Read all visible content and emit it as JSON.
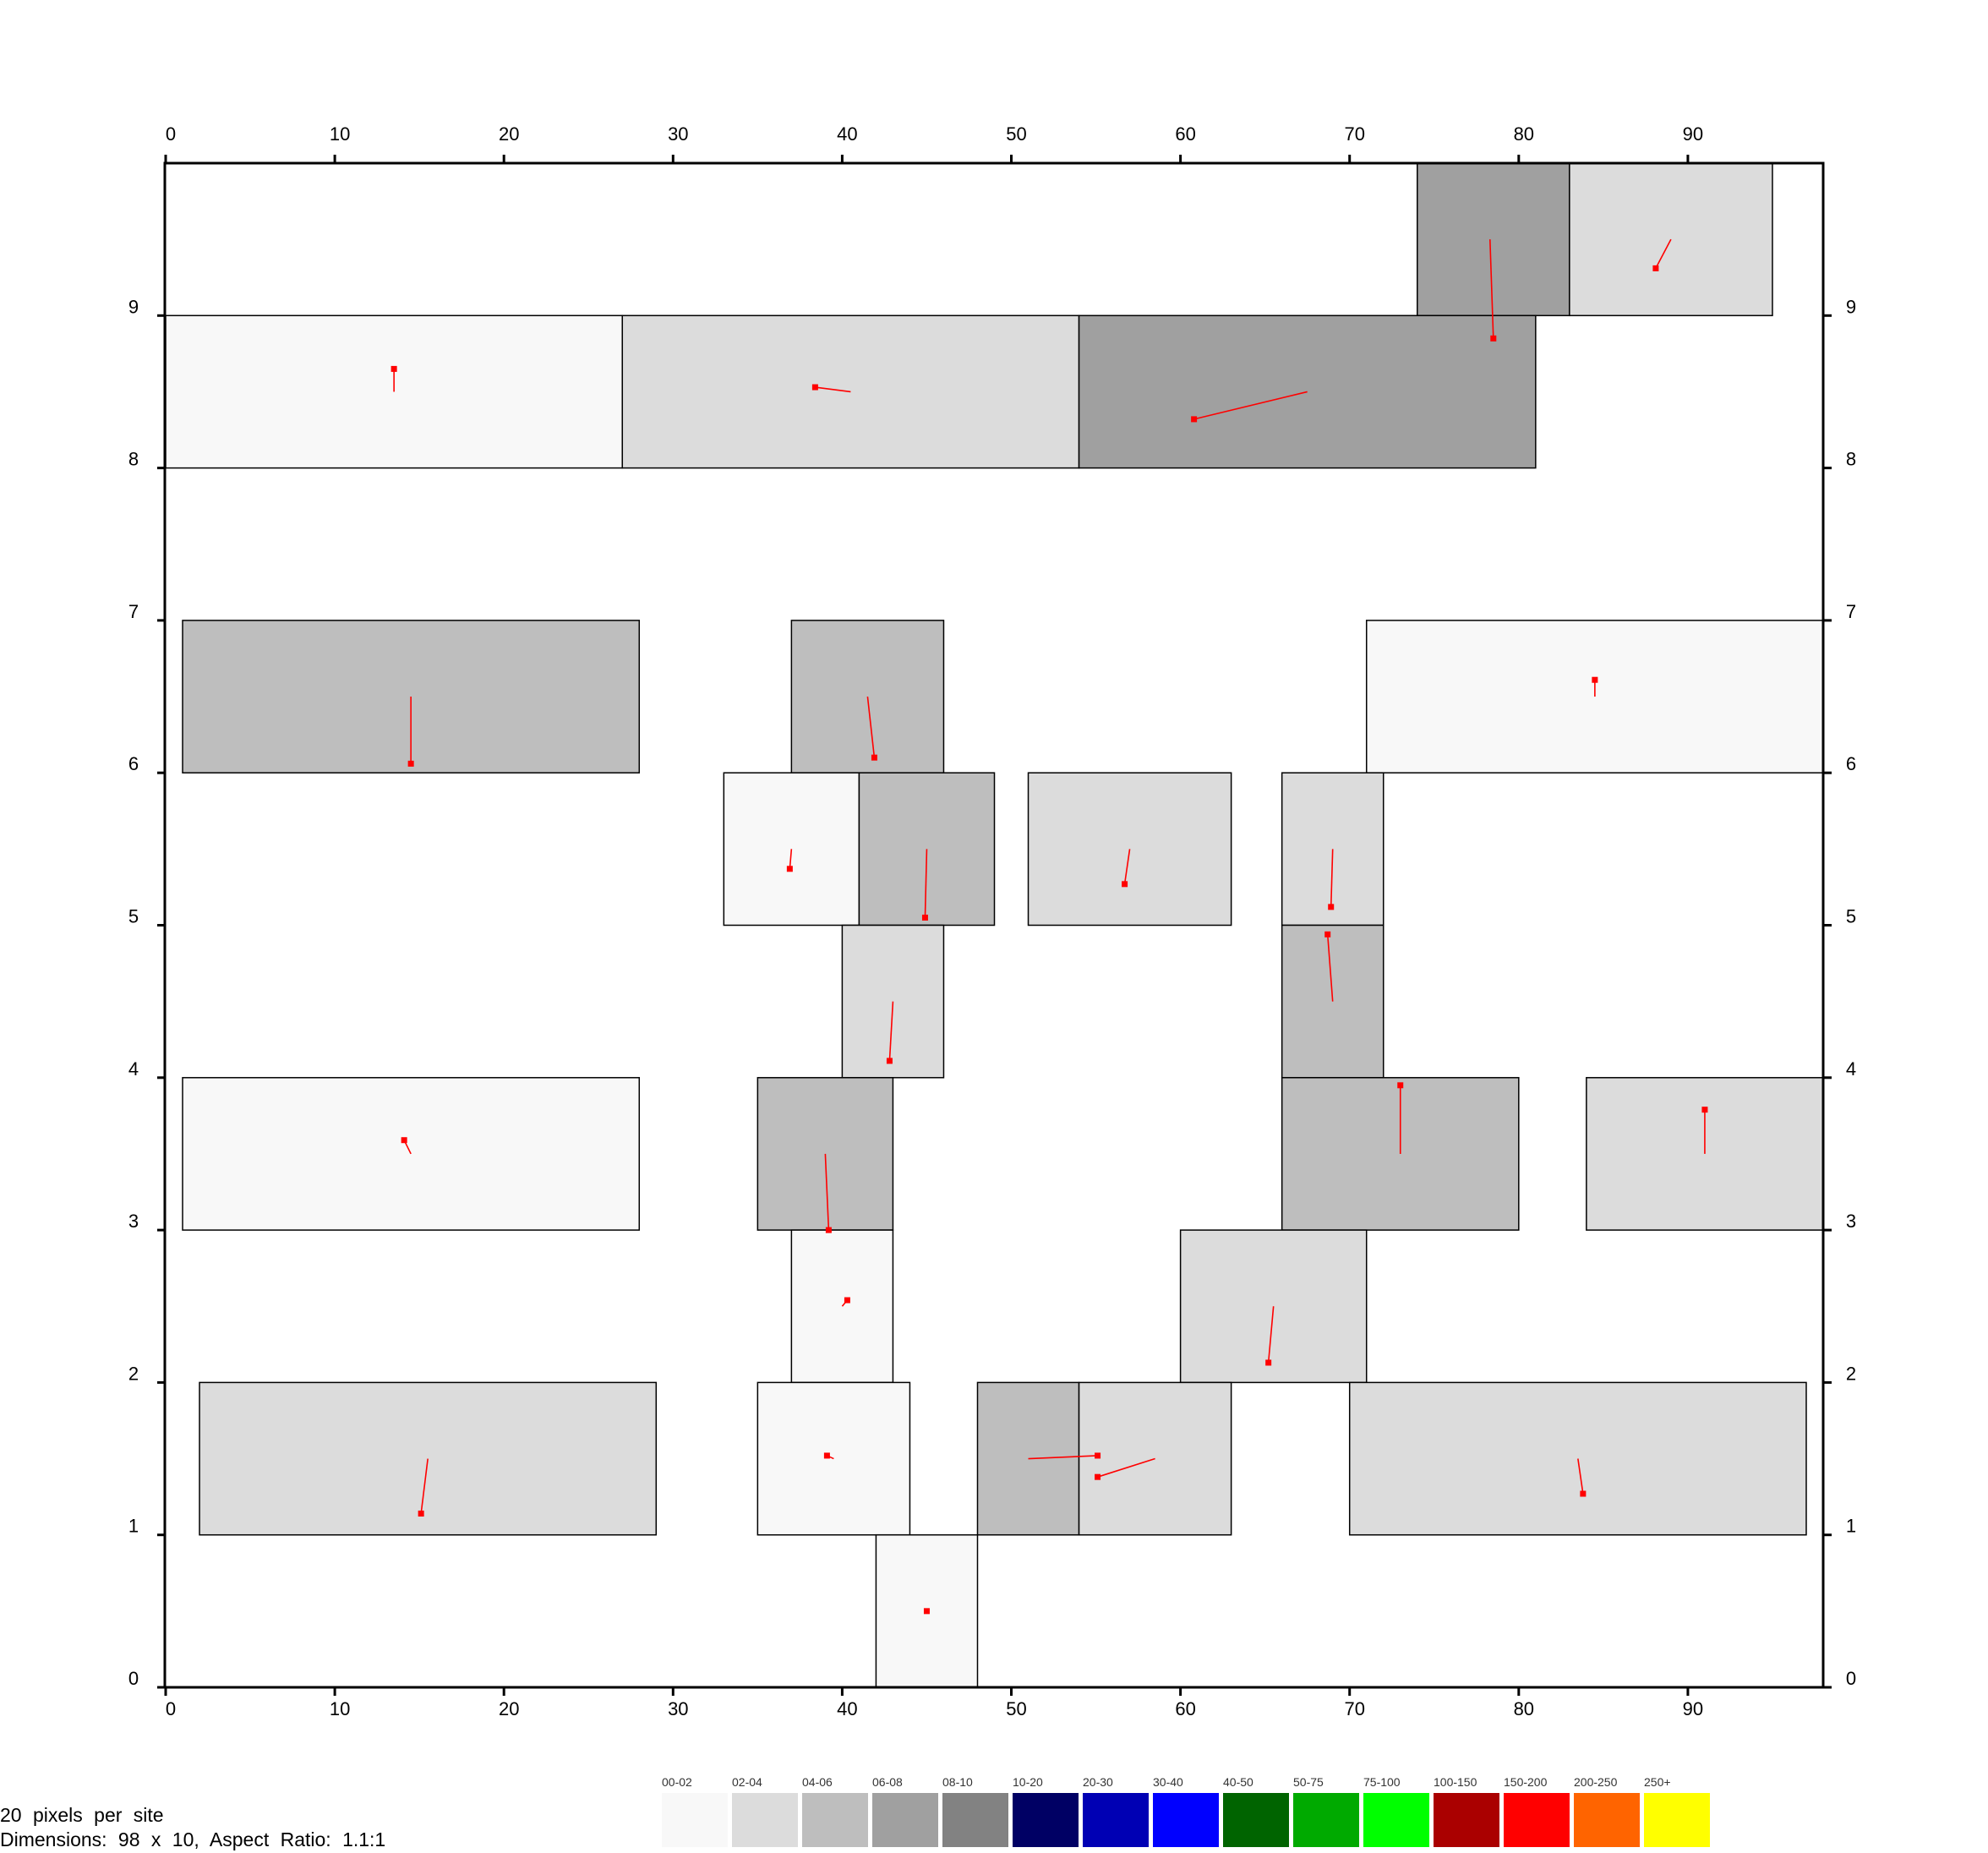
{
  "chart_data": {
    "type": "heatmap",
    "xlim": [
      0,
      98
    ],
    "ylim": [
      0,
      10
    ],
    "x_ticks": [
      0,
      10,
      20,
      30,
      40,
      50,
      60,
      70,
      80,
      90
    ],
    "y_ticks": [
      0,
      1,
      2,
      3,
      4,
      5,
      6,
      7,
      8,
      9
    ],
    "grid": false,
    "legend_placement": "bottom",
    "legend": [
      {
        "label": "00-02",
        "color": "#f8f8f8"
      },
      {
        "label": "02-04",
        "color": "#dcdcdc"
      },
      {
        "label": "04-06",
        "color": "#bebebe"
      },
      {
        "label": "06-08",
        "color": "#a0a0a0"
      },
      {
        "label": "08-10",
        "color": "#828282"
      },
      {
        "label": "10-20",
        "color": "#000064"
      },
      {
        "label": "20-30",
        "color": "#0000b4"
      },
      {
        "label": "30-40",
        "color": "#0000ff"
      },
      {
        "label": "40-50",
        "color": "#006400"
      },
      {
        "label": "50-75",
        "color": "#00aa00"
      },
      {
        "label": "75-100",
        "color": "#00ff00"
      },
      {
        "label": "100-150",
        "color": "#aa0000"
      },
      {
        "label": "150-200",
        "color": "#ff0000"
      },
      {
        "label": "200-250",
        "color": "#ff6400"
      },
      {
        "label": "250+",
        "color": "#ffff00"
      }
    ],
    "cells": [
      {
        "x0": 74,
        "x1": 83,
        "y0": 9,
        "y1": 10,
        "bin": "06-08",
        "vector": {
          "x0": 78.3,
          "y0": 9.5,
          "x1": 78.5,
          "y1": 8.85
        }
      },
      {
        "x0": 83,
        "x1": 95,
        "y0": 9,
        "y1": 10,
        "bin": "02-04",
        "vector": {
          "x0": 89.0,
          "y0": 9.5,
          "x1": 88.1,
          "y1": 9.31
        }
      },
      {
        "x0": 0,
        "x1": 27,
        "y0": 8,
        "y1": 9,
        "bin": "00-02",
        "vector": {
          "x0": 13.5,
          "y0": 8.5,
          "x1": 13.5,
          "y1": 8.65
        }
      },
      {
        "x0": 27,
        "x1": 54,
        "y0": 8,
        "y1": 9,
        "bin": "02-04",
        "vector": {
          "x0": 40.5,
          "y0": 8.5,
          "x1": 38.4,
          "y1": 8.53
        }
      },
      {
        "x0": 54,
        "x1": 81,
        "y0": 8,
        "y1": 9,
        "bin": "06-08",
        "vector": {
          "x0": 67.5,
          "y0": 8.5,
          "x1": 60.8,
          "y1": 8.32
        }
      },
      {
        "x0": 1,
        "x1": 28,
        "y0": 6,
        "y1": 7,
        "bin": "04-06",
        "vector": {
          "x0": 14.5,
          "y0": 6.5,
          "x1": 14.5,
          "y1": 6.06
        }
      },
      {
        "x0": 37,
        "x1": 46,
        "y0": 6,
        "y1": 7,
        "bin": "04-06",
        "vector": {
          "x0": 41.5,
          "y0": 6.5,
          "x1": 41.9,
          "y1": 6.1
        }
      },
      {
        "x0": 71,
        "x1": 98,
        "y0": 6,
        "y1": 7,
        "bin": "00-02",
        "vector": {
          "x0": 84.5,
          "y0": 6.5,
          "x1": 84.5,
          "y1": 6.61
        }
      },
      {
        "x0": 33,
        "x1": 41,
        "y0": 5,
        "y1": 6,
        "bin": "00-02",
        "vector": {
          "x0": 37.0,
          "y0": 5.5,
          "x1": 36.9,
          "y1": 5.37
        }
      },
      {
        "x0": 41,
        "x1": 49,
        "y0": 5,
        "y1": 6,
        "bin": "04-06",
        "vector": {
          "x0": 45.0,
          "y0": 5.5,
          "x1": 44.9,
          "y1": 5.05
        }
      },
      {
        "x0": 51,
        "x1": 63,
        "y0": 5,
        "y1": 6,
        "bin": "02-04",
        "vector": {
          "x0": 57.0,
          "y0": 5.5,
          "x1": 56.7,
          "y1": 5.27
        }
      },
      {
        "x0": 66,
        "x1": 72,
        "y0": 5,
        "y1": 6,
        "bin": "02-04",
        "vector": {
          "x0": 69.0,
          "y0": 5.5,
          "x1": 68.9,
          "y1": 5.12
        }
      },
      {
        "x0": 40,
        "x1": 46,
        "y0": 4,
        "y1": 5,
        "bin": "02-04",
        "vector": {
          "x0": 43.0,
          "y0": 4.5,
          "x1": 42.8,
          "y1": 4.11
        }
      },
      {
        "x0": 66,
        "x1": 72,
        "y0": 4,
        "y1": 5,
        "bin": "04-06",
        "vector": {
          "x0": 69.0,
          "y0": 4.5,
          "x1": 68.7,
          "y1": 4.94
        }
      },
      {
        "x0": 1,
        "x1": 28,
        "y0": 3,
        "y1": 4,
        "bin": "00-02",
        "vector": {
          "x0": 14.5,
          "y0": 3.5,
          "x1": 14.1,
          "y1": 3.59
        }
      },
      {
        "x0": 35,
        "x1": 43,
        "y0": 3,
        "y1": 4,
        "bin": "04-06",
        "vector": {
          "x0": 39.0,
          "y0": 3.5,
          "x1": 39.2,
          "y1": 3.0
        }
      },
      {
        "x0": 66,
        "x1": 80,
        "y0": 3,
        "y1": 4,
        "bin": "04-06",
        "vector": {
          "x0": 73.0,
          "y0": 3.5,
          "x1": 73.0,
          "y1": 3.95
        }
      },
      {
        "x0": 84,
        "x1": 98,
        "y0": 3,
        "y1": 4,
        "bin": "02-04",
        "vector": {
          "x0": 91.0,
          "y0": 3.5,
          "x1": 91.0,
          "y1": 3.79
        }
      },
      {
        "x0": 37,
        "x1": 43,
        "y0": 2,
        "y1": 3,
        "bin": "00-02",
        "vector": {
          "x0": 40.0,
          "y0": 2.5,
          "x1": 40.3,
          "y1": 2.54
        }
      },
      {
        "x0": 60,
        "x1": 71,
        "y0": 2,
        "y1": 3,
        "bin": "02-04",
        "vector": {
          "x0": 65.5,
          "y0": 2.5,
          "x1": 65.2,
          "y1": 2.13
        }
      },
      {
        "x0": 2,
        "x1": 29,
        "y0": 1,
        "y1": 2,
        "bin": "02-04",
        "vector": {
          "x0": 15.5,
          "y0": 1.5,
          "x1": 15.1,
          "y1": 1.14
        }
      },
      {
        "x0": 35,
        "x1": 44,
        "y0": 1,
        "y1": 2,
        "bin": "00-02",
        "vector": {
          "x0": 39.5,
          "y0": 1.5,
          "x1": 39.1,
          "y1": 1.52
        }
      },
      {
        "x0": 48,
        "x1": 54,
        "y0": 1,
        "y1": 2,
        "bin": "04-06",
        "vector": {
          "x0": 51.0,
          "y0": 1.5,
          "x1": 55.1,
          "y1": 1.52
        }
      },
      {
        "x0": 54,
        "x1": 63,
        "y0": 1,
        "y1": 2,
        "bin": "02-04",
        "vector": {
          "x0": 58.5,
          "y0": 1.5,
          "x1": 55.1,
          "y1": 1.38
        }
      },
      {
        "x0": 70,
        "x1": 97,
        "y0": 1,
        "y1": 2,
        "bin": "02-04",
        "vector": {
          "x0": 83.5,
          "y0": 1.5,
          "x1": 83.8,
          "y1": 1.27
        }
      },
      {
        "x0": 42,
        "x1": 48,
        "y0": 0,
        "y1": 1,
        "bin": "00-02",
        "vector": {
          "x0": 45.0,
          "y0": 0.5,
          "x1": 45.0,
          "y1": 0.5
        }
      }
    ]
  },
  "info": {
    "line1": "20 pixels per site",
    "line2": "Dimensions: 98 x 10, Aspect Ratio: 1.1:1"
  }
}
